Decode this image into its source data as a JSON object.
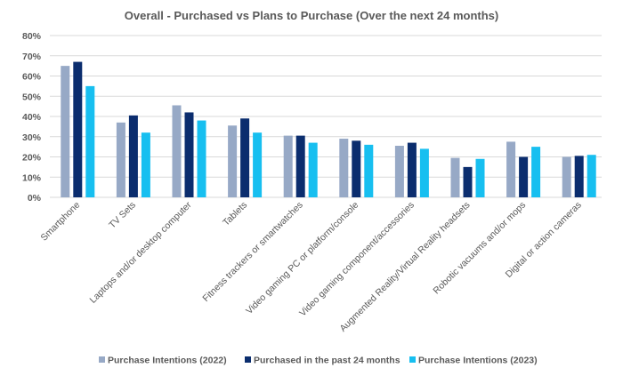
{
  "chart_data": {
    "type": "bar",
    "title": "Overall - Purchased vs Plans to Purchase (Over the next 24 months)",
    "xlabel": "",
    "ylabel": "",
    "ylim": [
      0,
      80
    ],
    "yticks": [
      0,
      10,
      20,
      30,
      40,
      50,
      60,
      70,
      80
    ],
    "ytick_labels": [
      "0%",
      "10%",
      "20%",
      "30%",
      "40%",
      "50%",
      "60%",
      "70%",
      "80%"
    ],
    "grid": true,
    "legend_position": "bottom",
    "categories": [
      "Smartphone",
      "TV Sets",
      "Laptops and/or desktop computer",
      "Tablets",
      "Fitness trackers or smartwatches",
      "Video gaming PC or platform/console",
      "Video gaming component/accessories",
      "Augmented Reality/Virtual Reality headsets",
      "Robotic vacuums and/or mops",
      "Digital or action cameras"
    ],
    "series": [
      {
        "name": "Purchase Intentions (2022)",
        "color": "#97a9c6",
        "values": [
          65,
          37,
          45.5,
          35.5,
          30.5,
          29,
          25.5,
          19.5,
          27.5,
          20
        ]
      },
      {
        "name": "Purchased in the past 24 months",
        "color": "#0b2d6e",
        "values": [
          67,
          40.5,
          42,
          39,
          30.5,
          28,
          27,
          15,
          20,
          20.5
        ]
      },
      {
        "name": "Purchase Intentions (2023)",
        "color": "#17bff0",
        "values": [
          55,
          32,
          38,
          32,
          27,
          26,
          24,
          19,
          25,
          21
        ]
      }
    ]
  }
}
